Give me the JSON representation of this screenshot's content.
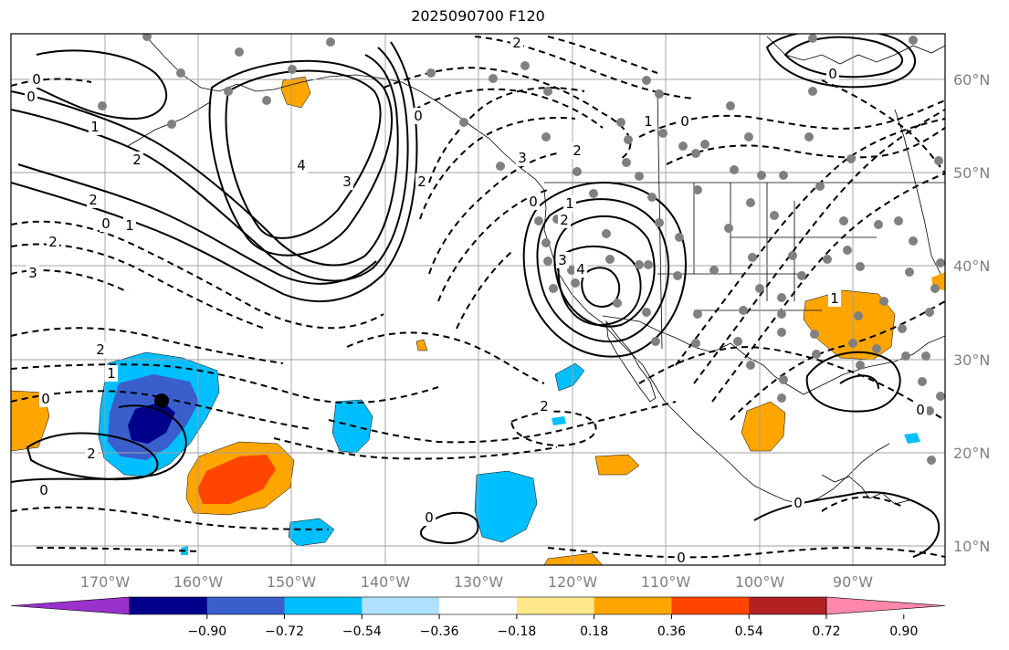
{
  "title": "2025090700 F120",
  "lon_labels": [
    "170°W",
    "160°W",
    "150°W",
    "140°W",
    "130°W",
    "120°W",
    "110°W",
    "100°W",
    "90°W"
  ],
  "lat_labels": [
    "60°N",
    "50°N",
    "40°N",
    "30°N",
    "20°N",
    "10°N"
  ],
  "colorbar": {
    "colors": [
      "#9932cc",
      "#00008b",
      "#3a5fcd",
      "#00bfff",
      "#b0e2ff",
      "#ffffff",
      "#ffe88a",
      "#ffa500",
      "#ff4500",
      "#b22222",
      "#ff88aa"
    ],
    "labels": [
      "−0.90",
      "−0.72",
      "−0.54",
      "−0.36",
      "−0.18",
      "0.18",
      "0.36",
      "0.54",
      "0.72",
      "0.90"
    ]
  },
  "contour_labels": [
    "0",
    "0",
    "1",
    "2",
    "4",
    "3",
    "2",
    "0",
    "1",
    "2",
    "3",
    "3",
    "2",
    "1",
    "0",
    "0",
    "2",
    "3",
    "4",
    "2",
    "1",
    "0",
    "2",
    "0",
    "1",
    "2",
    "0",
    "0",
    "2",
    "0",
    "0",
    "0",
    "0",
    "1",
    "2"
  ],
  "colors": {
    "dots": "#808080",
    "tc_center": "#000000"
  }
}
